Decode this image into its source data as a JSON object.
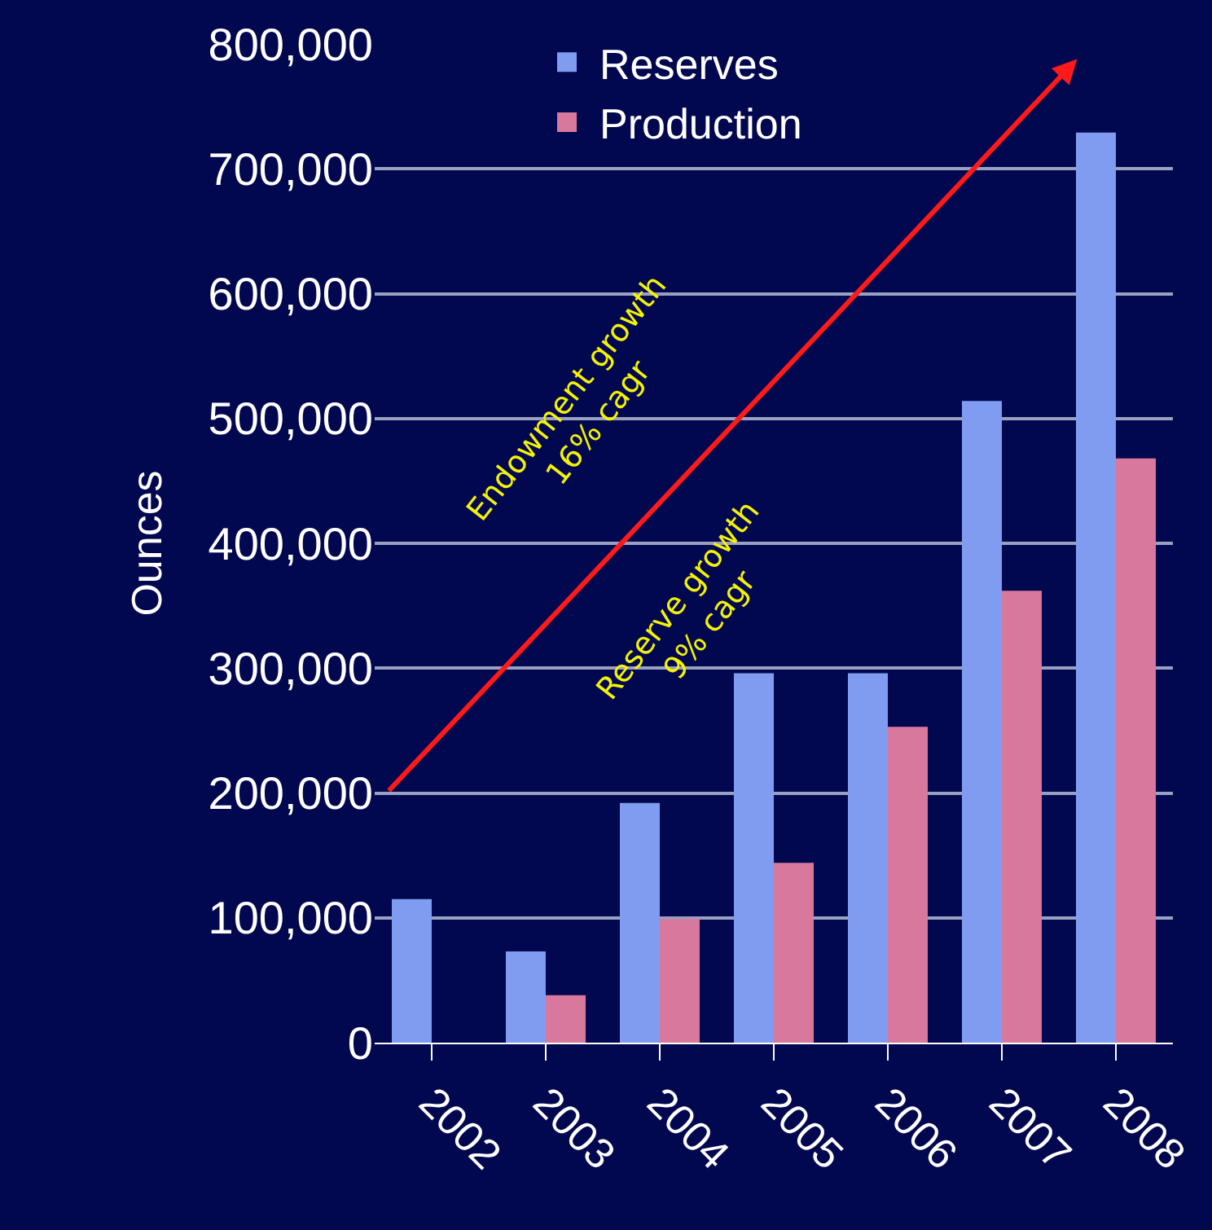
{
  "chart_data": {
    "type": "bar",
    "ylabel": "Ounces",
    "categories": [
      "2002",
      "2003",
      "2004",
      "2005",
      "2006",
      "2007",
      "2008"
    ],
    "series": [
      {
        "name": "Reserves",
        "color": "#7f9cf0",
        "values": [
          115000,
          73000,
          192000,
          296000,
          296000,
          514000,
          729000
        ]
      },
      {
        "name": "Production",
        "color": "#d8789c",
        "values": [
          null,
          38000,
          99000,
          144000,
          253000,
          362000,
          468000
        ]
      }
    ],
    "ylim": [
      0,
      800000
    ],
    "yticks": [
      {
        "value": 0,
        "label": "0"
      },
      {
        "value": 100000,
        "label": "100,000"
      },
      {
        "value": 200000,
        "label": "200,000"
      },
      {
        "value": 300000,
        "label": "300,000"
      },
      {
        "value": 400000,
        "label": "400,000"
      },
      {
        "value": 500000,
        "label": "500,000"
      },
      {
        "value": 600000,
        "label": "600,000"
      },
      {
        "value": 700000,
        "label": "700,000"
      },
      {
        "value": 800000,
        "label": "800,000"
      }
    ],
    "grid": "y",
    "legend": "top",
    "annotations": [
      "Endowment growth\n16% cagr",
      "Reserve growth\n9% cagr"
    ]
  }
}
